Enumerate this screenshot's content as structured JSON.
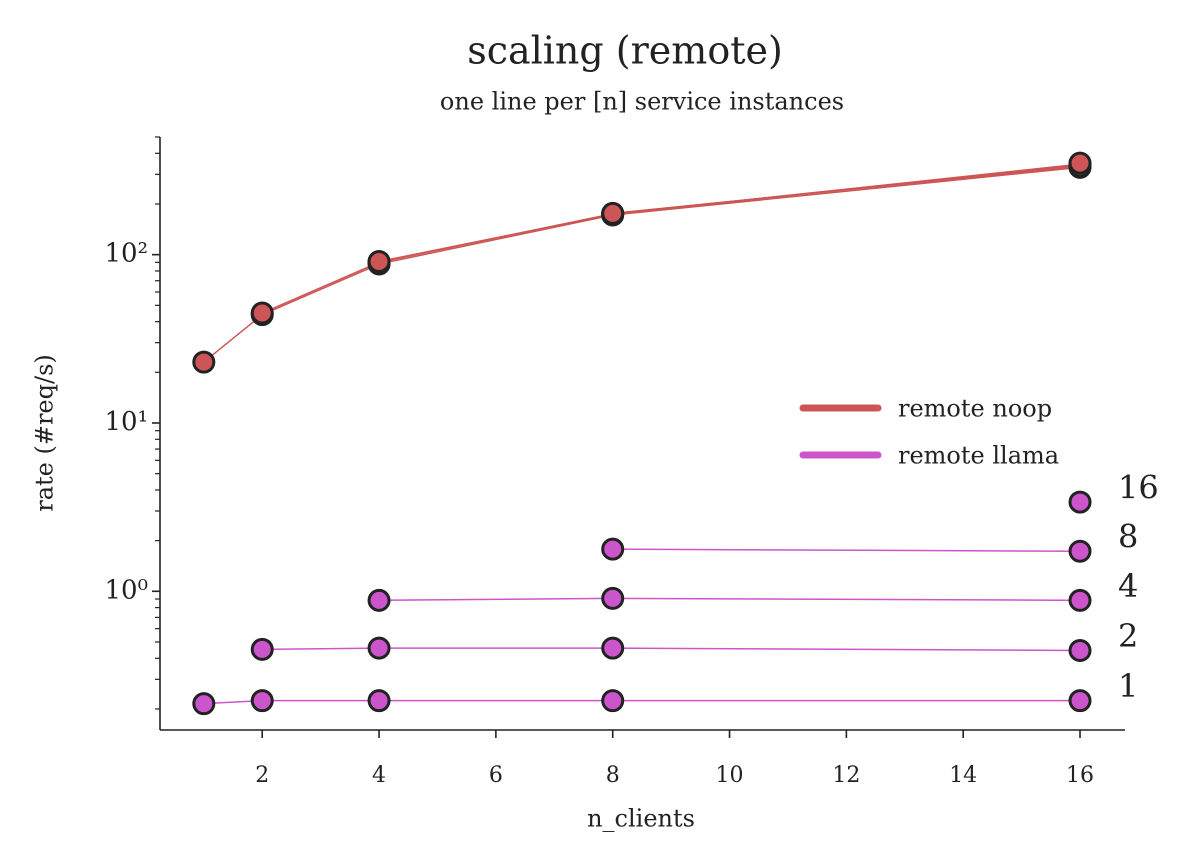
{
  "chart_data": {
    "type": "line",
    "title": "scaling (remote)",
    "subtitle": "one line per [n] service instances",
    "x_label": "n_clients",
    "y_label": "rate (#req/s)",
    "y_scale": "log",
    "xlim": [
      0.25,
      16.77
    ],
    "ylim": [
      0.15,
      500
    ],
    "xticks": [
      2,
      4,
      6,
      8,
      10,
      12,
      14,
      16
    ],
    "yticks": [
      {
        "value": 1,
        "label": "10⁰"
      },
      {
        "value": 10,
        "label": "10¹"
      },
      {
        "value": 100,
        "label": "10²"
      }
    ],
    "yminorticks": [
      0.2,
      0.3,
      0.4,
      0.5,
      0.6,
      0.7,
      0.8,
      0.9,
      2,
      3,
      4,
      5,
      6,
      7,
      8,
      9,
      20,
      30,
      40,
      50,
      60,
      70,
      80,
      90,
      200,
      300,
      400,
      500
    ],
    "legend": "center right",
    "series": [
      {
        "name": "remote noop",
        "color": "#cd5555",
        "lines": [
          {
            "x": [
              1,
              2,
              4,
              8,
              16
            ],
            "values": [
              23,
              44,
              88,
              172,
              330
            ]
          },
          {
            "x": [
              2,
              4,
              8,
              16
            ],
            "values": [
              45,
              90,
              175,
              340
            ]
          },
          {
            "x": [
              4,
              8,
              16
            ],
            "values": [
              91,
              174,
              345
            ]
          },
          {
            "x": [
              8,
              16
            ],
            "values": [
              176,
              335
            ]
          },
          {
            "x": [
              16
            ],
            "values": [
              350
            ]
          }
        ]
      },
      {
        "name": "remote llama",
        "color": "#cc55cc",
        "lines": [
          {
            "label": "1",
            "x": [
              1,
              2,
              4,
              8,
              16
            ],
            "values": [
              0.215,
              0.224,
              0.224,
              0.224,
              0.224
            ]
          },
          {
            "label": "2",
            "x": [
              2,
              4,
              8,
              16
            ],
            "values": [
              0.452,
              0.46,
              0.46,
              0.445
            ]
          },
          {
            "label": "4",
            "x": [
              4,
              8,
              16
            ],
            "values": [
              0.884,
              0.908,
              0.884
            ]
          },
          {
            "label": "8",
            "x": [
              8,
              16
            ],
            "values": [
              1.78,
              1.73
            ]
          },
          {
            "label": "16",
            "x": [
              16
            ],
            "values": [
              3.39
            ]
          }
        ]
      }
    ]
  }
}
